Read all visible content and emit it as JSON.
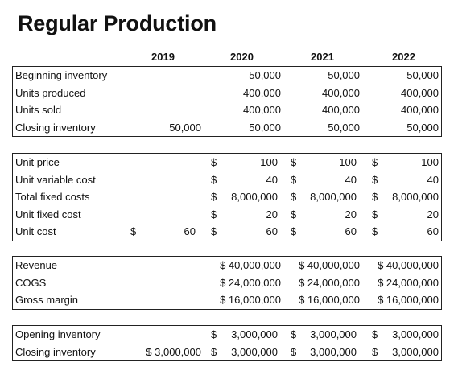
{
  "title": "Regular Production",
  "years": [
    "2019",
    "2020",
    "2021",
    "2022"
  ],
  "section1": [
    {
      "label": "Beginning inventory",
      "v2019": "",
      "v2020": "50,000",
      "v2021": "50,000",
      "v2022": "50,000"
    },
    {
      "label": "Units produced",
      "v2019": "",
      "v2020": "400,000",
      "v2021": "400,000",
      "v2022": "400,000"
    },
    {
      "label": "Units sold",
      "v2019": "",
      "v2020": "400,000",
      "v2021": "400,000",
      "v2022": "400,000"
    },
    {
      "label": "Closing inventory",
      "v2019": "50,000",
      "v2020": "50,000",
      "v2021": "50,000",
      "v2022": "50,000"
    }
  ],
  "section2": [
    {
      "label": "Unit price",
      "d2019": "",
      "v2019": "",
      "d2020": "$",
      "v2020": "100",
      "d2021": "$",
      "v2021": "100",
      "d2022": "$",
      "v2022": "100"
    },
    {
      "label": "Unit variable cost",
      "d2019": "",
      "v2019": "",
      "d2020": "$",
      "v2020": "40",
      "d2021": "$",
      "v2021": "40",
      "d2022": "$",
      "v2022": "40"
    },
    {
      "label": "Total fixed costs",
      "d2019": "",
      "v2019": "",
      "d2020": "$",
      "v2020": "8,000,000",
      "d2021": "$",
      "v2021": "8,000,000",
      "d2022": "$",
      "v2022": "8,000,000"
    },
    {
      "label": "Unit fixed cost",
      "d2019": "",
      "v2019": "",
      "d2020": "$",
      "v2020": "20",
      "d2021": "$",
      "v2021": "20",
      "d2022": "$",
      "v2022": "20"
    },
    {
      "label": "Unit cost",
      "d2019": "$",
      "v2019": "60",
      "d2020": "$",
      "v2020": "60",
      "d2021": "$",
      "v2021": "60",
      "d2022": "$",
      "v2022": "60"
    }
  ],
  "section3": [
    {
      "label": "Revenue",
      "v2020": "$ 40,000,000",
      "v2021": "$ 40,000,000",
      "v2022": "$ 40,000,000"
    },
    {
      "label": "COGS",
      "v2020": "$ 24,000,000",
      "v2021": "$ 24,000,000",
      "v2022": "$ 24,000,000"
    },
    {
      "label": "Gross margin",
      "v2020": "$ 16,000,000",
      "v2021": "$ 16,000,000",
      "v2022": "$ 16,000,000"
    }
  ],
  "section4": [
    {
      "label": "Opening inventory",
      "v2019": "",
      "d2020": "$",
      "v2020": "3,000,000",
      "d2021": "$",
      "v2021": "3,000,000",
      "d2022": "$",
      "v2022": "3,000,000"
    },
    {
      "label": "Closing inventory",
      "v2019": "$ 3,000,000",
      "d2020": "$",
      "v2020": "3,000,000",
      "d2021": "$",
      "v2021": "3,000,000",
      "d2022": "$",
      "v2022": "3,000,000"
    }
  ]
}
